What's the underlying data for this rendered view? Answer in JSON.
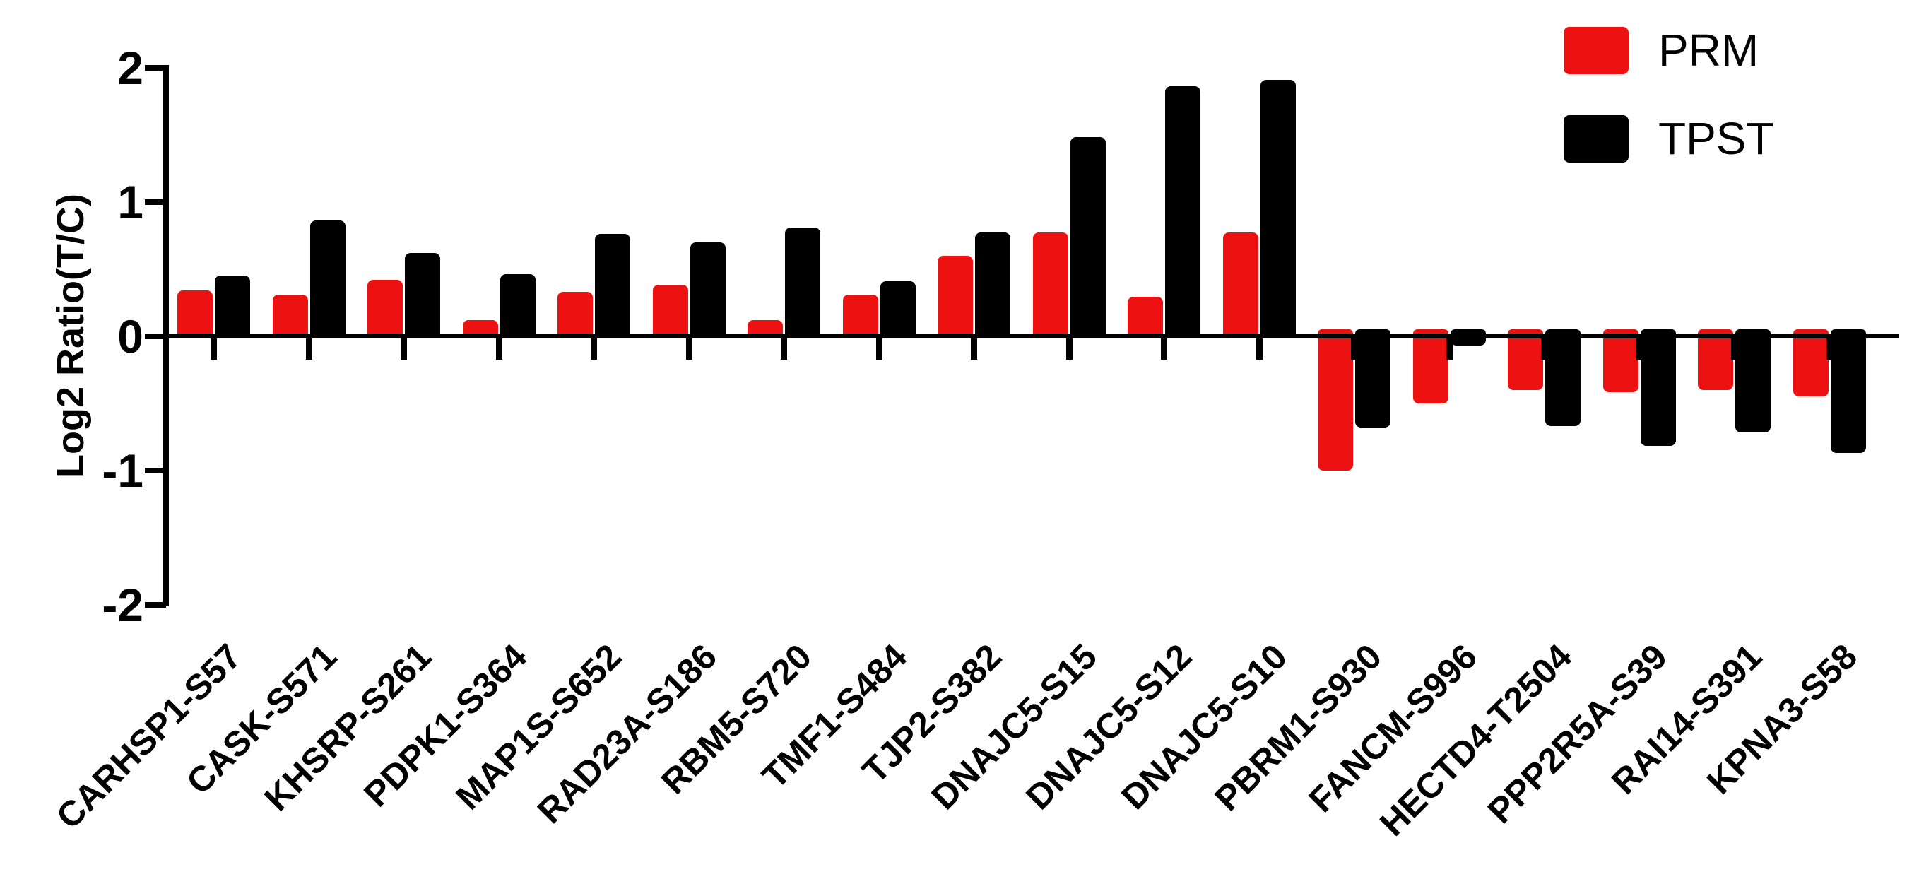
{
  "chart_data": {
    "type": "bar",
    "title": "",
    "ylabel": "Log2 Ratio(T/C)",
    "xlabel": "",
    "ylim": [
      -2,
      2
    ],
    "yticks": [
      "2",
      "1",
      "0",
      "-1",
      "-2"
    ],
    "ytick_values": [
      2,
      1,
      0,
      -1,
      -2
    ],
    "grid": "off",
    "legend_position": "top-right",
    "categories": [
      "CARHSP1-S57",
      "CASK-S571",
      "KHSRP-S261",
      "PDPK1-S364",
      "MAP1S-S652",
      "RAD23A-S186",
      "RBM5-S720",
      "TMF1-S484",
      "TJP2-S382",
      "DNAJC5-S15",
      "DNAJC5-S12",
      "DNAJC5-S10",
      "PBRM1-S930",
      "FANCM-S996",
      "HECTD4-T2504",
      "PPP2R5A-S39",
      "RAI14-S391",
      "KPNA3-S58"
    ],
    "series": [
      {
        "name": "PRM",
        "color": "#ee1111",
        "values": [
          0.34,
          0.31,
          0.42,
          0.12,
          0.33,
          0.38,
          0.12,
          0.31,
          0.6,
          0.77,
          0.29,
          0.77,
          -1.0,
          -0.5,
          -0.4,
          -0.42,
          -0.4,
          -0.45
        ]
      },
      {
        "name": "TPST",
        "color": "#000000",
        "values": [
          0.45,
          0.86,
          0.62,
          0.46,
          0.76,
          0.7,
          0.81,
          0.41,
          0.77,
          1.48,
          1.86,
          1.91,
          -0.68,
          -0.07,
          -0.67,
          -0.82,
          -0.72,
          -0.87
        ]
      }
    ]
  }
}
